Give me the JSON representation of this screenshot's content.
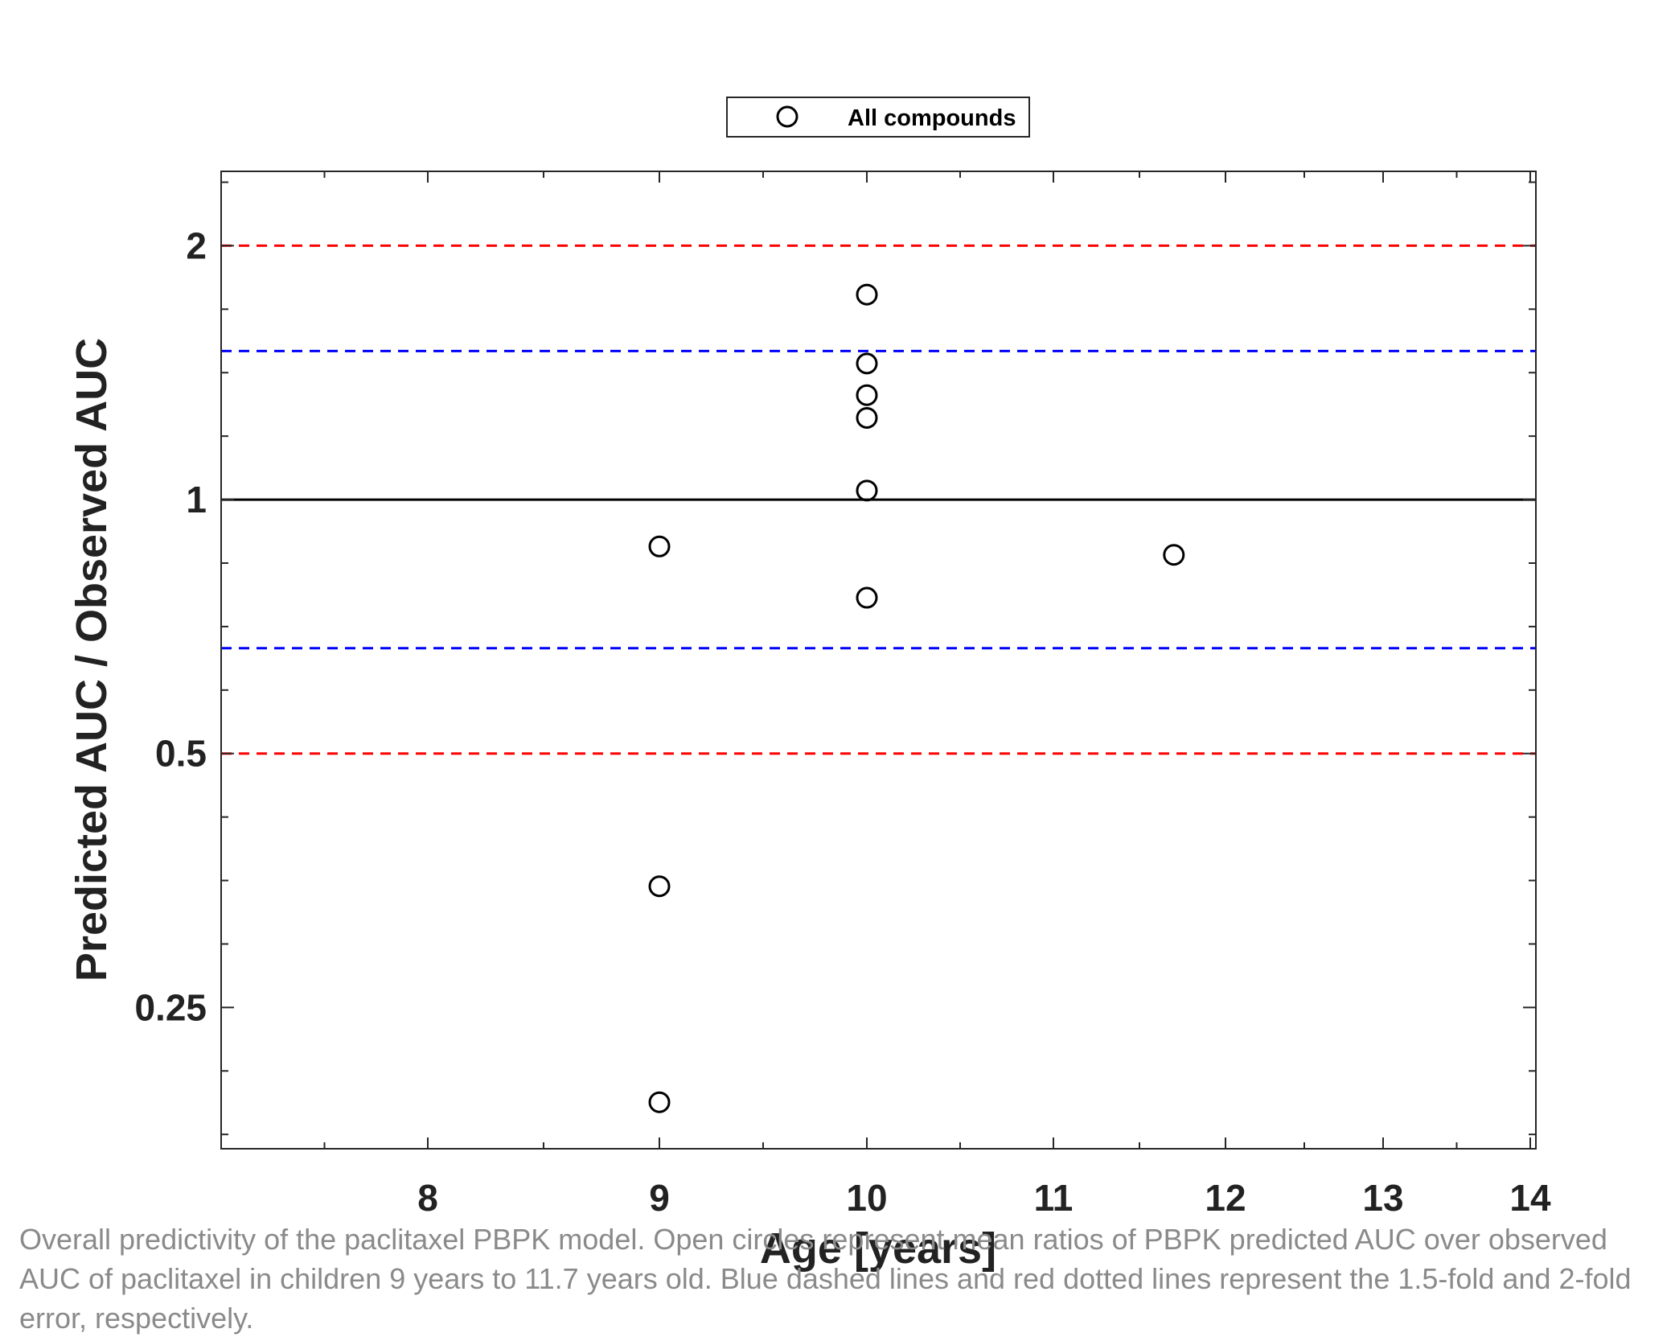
{
  "chart_data": {
    "type": "scatter",
    "xlabel": "Age [years]",
    "ylabel": "Predicted AUC / Observed AUC",
    "y_scale": "log2",
    "xlim": [
      7.0,
      14.0
    ],
    "ylim": [
      0.17,
      2.45
    ],
    "x_ticks": [
      8,
      9,
      10,
      11,
      12,
      13,
      14
    ],
    "x_tick_labels": [
      "8",
      "9",
      "10",
      "11",
      "12",
      "13",
      "14"
    ],
    "y_ticks": [
      0.25,
      0.5,
      1,
      2
    ],
    "y_tick_labels": [
      "0.25",
      "0.5",
      "1",
      "2"
    ],
    "grid": false,
    "legend": {
      "position": "top-center",
      "entries": [
        "All compounds"
      ]
    },
    "series": [
      {
        "name": "All compounds",
        "marker": "open-circle",
        "color": "#000000",
        "points": [
          {
            "x": 9,
            "y": 0.88
          },
          {
            "x": 9,
            "y": 0.348
          },
          {
            "x": 9,
            "y": 0.193
          },
          {
            "x": 10,
            "y": 1.75
          },
          {
            "x": 10,
            "y": 1.45
          },
          {
            "x": 10,
            "y": 1.33
          },
          {
            "x": 10,
            "y": 1.25
          },
          {
            "x": 10,
            "y": 1.025
          },
          {
            "x": 10,
            "y": 0.765
          },
          {
            "x": 11.7,
            "y": 0.86
          }
        ]
      }
    ],
    "reference_lines": [
      {
        "y": 1,
        "style": "solid",
        "color": "#000000"
      },
      {
        "y": 1.5,
        "style": "dashed",
        "color": "#0000ff"
      },
      {
        "y": 0.6667,
        "style": "dashed",
        "color": "#0000ff"
      },
      {
        "y": 2,
        "style": "dashed",
        "color": "#ff0000"
      },
      {
        "y": 0.5,
        "style": "dashed",
        "color": "#ff0000"
      }
    ]
  },
  "caption": "Overall predictivity of the paclitaxel PBPK model. Open circles represent mean ratios of PBPK predicted AUC over observed AUC of paclitaxel in children 9 years to 11.7 years old. Blue dashed lines and red dotted lines represent the 1.5-fold and 2-fold error, respectively."
}
